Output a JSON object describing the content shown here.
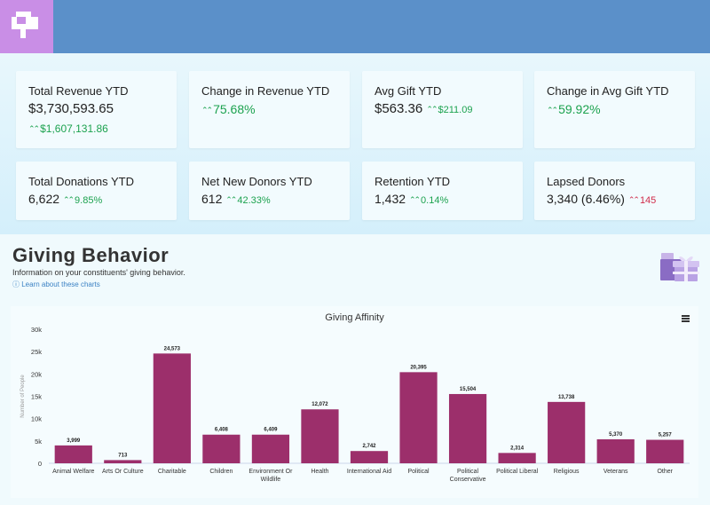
{
  "colors": {
    "topbar": "#5b90c9",
    "logo_bg": "#c98ee6",
    "positive": "#1ca24f",
    "negative": "#d02b4a",
    "bar": "#9c2f6b"
  },
  "metrics": [
    {
      "title": "Total Revenue YTD",
      "value": "$3,730,593.65",
      "delta": "$1,607,131.86",
      "direction": "up"
    },
    {
      "title": "Change in Revenue YTD",
      "value": "",
      "delta": "75.68%",
      "direction": "up"
    },
    {
      "title": "Avg Gift YTD",
      "value": "$563.36",
      "delta": "$211.09",
      "direction": "up"
    },
    {
      "title": "Change in Avg Gift YTD",
      "value": "",
      "delta": "59.92%",
      "direction": "up"
    },
    {
      "title": "Total Donations YTD",
      "value": "6,622",
      "delta": "9.85%",
      "direction": "up"
    },
    {
      "title": "Net New Donors YTD",
      "value": "612",
      "delta": "42.33%",
      "direction": "up"
    },
    {
      "title": "Retention YTD",
      "value": "1,432",
      "delta": "0.14%",
      "direction": "up"
    },
    {
      "title": "Lapsed Donors",
      "value": "3,340 (6.46%)",
      "delta": "145",
      "direction": "up-negative"
    }
  ],
  "section": {
    "title": "Giving Behavior",
    "subtitle": "Information on your constituents' giving behavior.",
    "link": "ⓘ Learn about these charts",
    "icons": {
      "gift": "gift-icon",
      "menu": "menu-icon",
      "logo": "logo-icon"
    }
  },
  "chart_data": {
    "type": "bar",
    "title": "Giving Affinity",
    "xlabel": "",
    "ylabel": "Number of People",
    "ylim": [
      0,
      30000
    ],
    "yticks": [
      0,
      5000,
      10000,
      15000,
      20000,
      25000,
      30000
    ],
    "ytick_labels": [
      "0",
      "5k",
      "10k",
      "15k",
      "20k",
      "25k",
      "30k"
    ],
    "categories": [
      "Animal Welfare",
      "Arts Or Culture",
      "Charitable",
      "Children",
      "Environment Or Wildlife",
      "Health",
      "International Aid",
      "Political",
      "Political Conservative",
      "Political Liberal",
      "Religious",
      "Veterans",
      "Other"
    ],
    "category_lines": [
      [
        "Animal Welfare"
      ],
      [
        "Arts Or Culture"
      ],
      [
        "Charitable"
      ],
      [
        "Children"
      ],
      [
        "Environment Or",
        "Wildlife"
      ],
      [
        "Health"
      ],
      [
        "International Aid"
      ],
      [
        "Political"
      ],
      [
        "Political",
        "Conservative"
      ],
      [
        "Political Liberal"
      ],
      [
        "Religious"
      ],
      [
        "Veterans"
      ],
      [
        "Other"
      ]
    ],
    "values": [
      3999,
      713,
      24573,
      6408,
      6409,
      12072,
      2742,
      20395,
      15504,
      2314,
      13738,
      5370,
      5257
    ],
    "value_labels": [
      "3,999",
      "713",
      "24,573",
      "6,408",
      "6,409",
      "12,072",
      "2,742",
      "20,395",
      "15,504",
      "2,314",
      "13,738",
      "5,370",
      "5,257"
    ],
    "grid": false,
    "legend": "none"
  }
}
